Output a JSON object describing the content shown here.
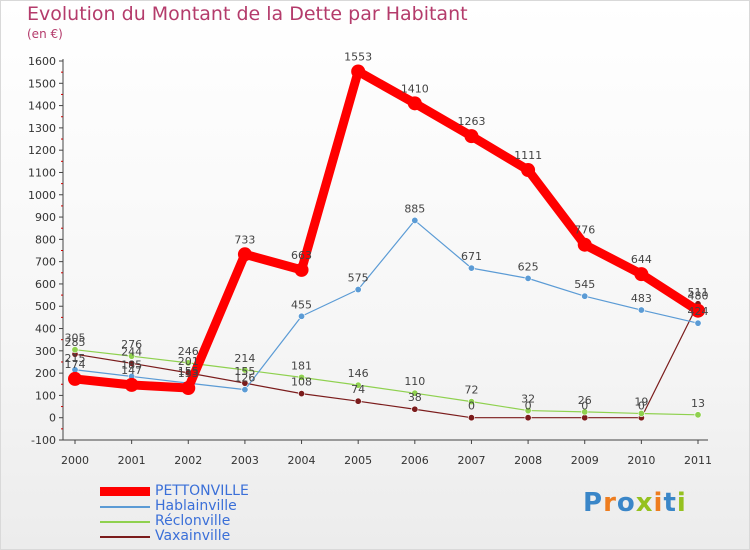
{
  "title": "Evolution du Montant de la Dette par Habitant",
  "subtitle": "(en €)",
  "logo": {
    "letters": [
      {
        "ch": "P",
        "color": "#3a86c8"
      },
      {
        "ch": "r",
        "color": "#ee7d1f"
      },
      {
        "ch": "o",
        "color": "#3a86c8"
      },
      {
        "ch": "x",
        "color": "#95c11f"
      },
      {
        "ch": "i",
        "color": "#ee7d1f"
      },
      {
        "ch": "t",
        "color": "#3a86c8"
      },
      {
        "ch": "i",
        "color": "#95c11f"
      }
    ]
  },
  "chart_data": {
    "type": "line",
    "title": "Evolution du Montant de la Dette par Habitant",
    "subtitle": "(en €)",
    "x": [
      "2000",
      "2001",
      "2002",
      "2003",
      "2004",
      "2005",
      "2006",
      "2007",
      "2008",
      "2009",
      "2010",
      "2011"
    ],
    "ylim": [
      -100,
      1600
    ],
    "yticks": [
      -100,
      0,
      100,
      200,
      300,
      400,
      500,
      600,
      700,
      800,
      900,
      1000,
      1100,
      1200,
      1300,
      1400,
      1500,
      1600
    ],
    "grid": false,
    "legend_position": "bottom-left",
    "series": [
      {
        "name": "PETTONVILLE",
        "color": "#ff0000",
        "values": [
          174,
          147,
          133,
          733,
          663,
          1553,
          1410,
          1263,
          1111,
          776,
          644,
          480
        ],
        "labels": [
          "174",
          "147",
          "133",
          "733",
          "663",
          "1553",
          "1410",
          "1263",
          "1111",
          "776",
          "644",
          "480"
        ]
      },
      {
        "name": "Hablainville",
        "color": "#5b9bd5",
        "values": [
          215,
          185,
          155,
          126,
          455,
          575,
          885,
          671,
          625,
          545,
          483,
          424
        ],
        "labels": [
          "215",
          "185",
          "155",
          "126",
          "455",
          "575",
          "885",
          "671",
          "625",
          "545",
          "483",
          "424"
        ]
      },
      {
        "name": "Réclonville",
        "color": "#8fd14f",
        "values": [
          305,
          276,
          246,
          214,
          181,
          146,
          110,
          72,
          32,
          26,
          19,
          13
        ],
        "labels": [
          "305",
          "276",
          "246",
          "214",
          "181",
          "146",
          "110",
          "72",
          "32",
          "26",
          "19",
          "13"
        ]
      },
      {
        "name": "Vaxainville",
        "color": "#7b1c1c",
        "values": [
          285,
          244,
          201,
          155,
          108,
          74,
          38,
          0,
          0,
          0,
          0,
          511
        ],
        "labels": [
          "285",
          "244",
          "201",
          "155",
          "108",
          "74",
          "38",
          "0",
          "0",
          "0",
          "0",
          "511"
        ]
      }
    ]
  }
}
